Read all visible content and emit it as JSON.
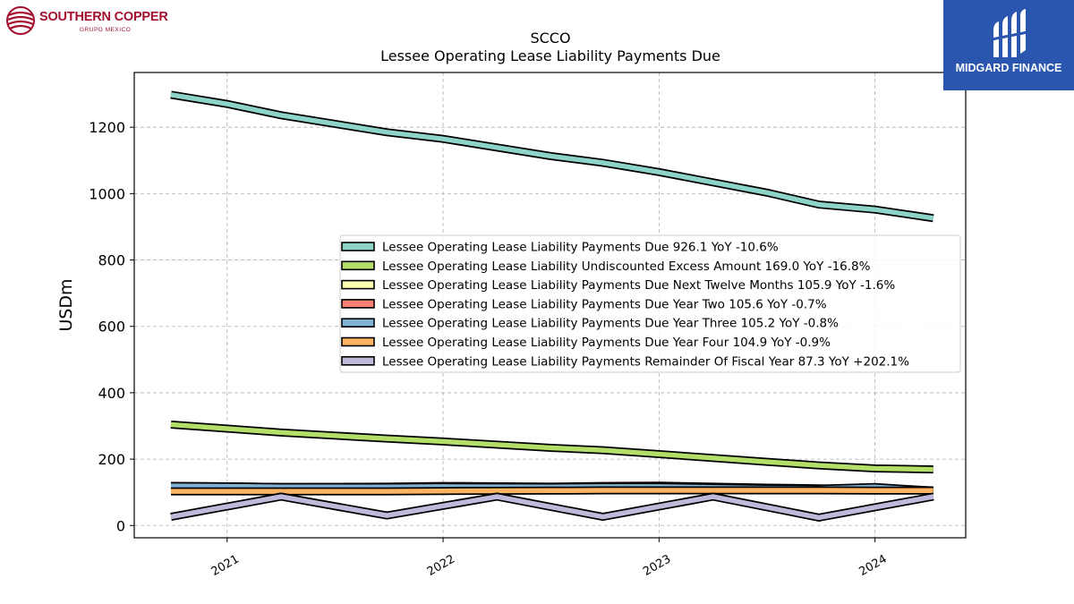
{
  "logos": {
    "left": {
      "name": "SOUTHERN COPPER",
      "sub": "GRUPO MEXICO"
    },
    "right": {
      "name": "MIDGARD FINANCE"
    }
  },
  "chart_data": {
    "type": "line",
    "title": "SCCO",
    "subtitle": "Lessee Operating Lease Liability Payments Due",
    "ylabel": "USDm",
    "xlabel": "",
    "ylim": [
      -37,
      1365
    ],
    "xlim": [
      2020.57,
      2024.42
    ],
    "yticks": [
      0,
      200,
      400,
      600,
      800,
      1000,
      1200
    ],
    "xticks": [
      {
        "value": 2021.0,
        "label": "2021"
      },
      {
        "value": 2022.0,
        "label": "2022"
      },
      {
        "value": 2023.0,
        "label": "2023"
      },
      {
        "value": 2024.0,
        "label": "2024"
      }
    ],
    "grid": true,
    "legend_position": "center-right",
    "series": [
      {
        "name": "Lessee Operating Lease Liability Payments Due",
        "legend": "Lessee Operating Lease Liability Payments Due  926.1 YoY -10.6%",
        "color": "#8dd3c7",
        "x": [
          2020.74,
          2021.0,
          2021.25,
          2021.74,
          2022.0,
          2022.5,
          2022.74,
          2023.0,
          2023.5,
          2023.74,
          2024.0,
          2024.27
        ],
        "values": [
          1298,
          1270,
          1236,
          1185,
          1165,
          1113,
          1093,
          1065,
          1003,
          967,
          952,
          926
        ]
      },
      {
        "name": "Lessee Operating Lease Liability Undiscounted Excess Amount",
        "legend": "Lessee Operating Lease Liability Undiscounted Excess Amount  169.0 YoY -16.8%",
        "color": "#b3de69",
        "x": [
          2020.74,
          2021.0,
          2021.25,
          2021.74,
          2022.0,
          2022.5,
          2022.74,
          2023.0,
          2023.5,
          2023.74,
          2024.0,
          2024.27
        ],
        "values": [
          304,
          292,
          280,
          262,
          253,
          234,
          227,
          215,
          192,
          181,
          172,
          169
        ]
      },
      {
        "name": "Lessee Operating Lease Liability Payments Due Next Twelve Months",
        "legend": "Lessee Operating Lease Liability Payments Due Next Twelve Months  105.9 YoY -1.6%",
        "color": "#ffffb3",
        "x": [
          2020.74,
          2021.0,
          2021.25,
          2021.74,
          2022.0,
          2022.5,
          2022.74,
          2023.0,
          2023.5,
          2023.74,
          2024.0,
          2024.27
        ],
        "values": [
          119,
          118,
          116,
          117,
          119,
          117,
          119,
          120,
          114,
          112,
          108,
          106
        ]
      },
      {
        "name": "Lessee Operating Lease Liability Payments Due Year Two",
        "legend": "Lessee Operating Lease Liability Payments Due Year Two  105.6 YoY -0.7%",
        "color": "#fb8072",
        "x": [
          2020.74,
          2021.0,
          2021.25,
          2021.74,
          2022.0,
          2022.5,
          2022.74,
          2023.0,
          2023.5,
          2023.74,
          2024.0,
          2024.27
        ],
        "values": [
          108,
          108,
          107,
          108,
          108,
          108,
          108,
          108,
          107,
          107,
          106,
          106
        ]
      },
      {
        "name": "Lessee Operating Lease Liability Payments Due Year Three",
        "legend": "Lessee Operating Lease Liability Payments Due Year Three  105.2 YoY -0.8%",
        "color": "#80b1d3",
        "x": [
          2020.74,
          2021.0,
          2021.25,
          2021.74,
          2022.0,
          2022.5,
          2022.74,
          2023.0,
          2023.5,
          2023.74,
          2024.0,
          2024.27
        ],
        "values": [
          119,
          118,
          116,
          116,
          117,
          116,
          117,
          117,
          112,
          111,
          116,
          105
        ]
      },
      {
        "name": "Lessee Operating Lease Liability Payments Due Year Four",
        "legend": "Lessee Operating Lease Liability Payments Due Year Four  104.9 YoY -0.9%",
        "color": "#fdb462",
        "x": [
          2020.74,
          2021.0,
          2021.25,
          2021.74,
          2022.0,
          2022.5,
          2022.74,
          2023.0,
          2023.5,
          2023.74,
          2024.0,
          2024.27
        ],
        "values": [
          103,
          103,
          103,
          103,
          104,
          105,
          106,
          106,
          106,
          106,
          105,
          105
        ]
      },
      {
        "name": "Lessee Operating Lease Liability Payments Remainder Of Fiscal Year",
        "legend": "Lessee Operating Lease Liability Payments Remainder Of Fiscal Year  87.3 YoY +202.1%",
        "color": "#bebada",
        "x": [
          2020.74,
          2021.25,
          2021.74,
          2022.25,
          2022.74,
          2023.25,
          2023.74,
          2024.27
        ],
        "values": [
          26,
          87,
          30,
          87,
          26,
          87,
          24,
          87
        ]
      }
    ]
  }
}
